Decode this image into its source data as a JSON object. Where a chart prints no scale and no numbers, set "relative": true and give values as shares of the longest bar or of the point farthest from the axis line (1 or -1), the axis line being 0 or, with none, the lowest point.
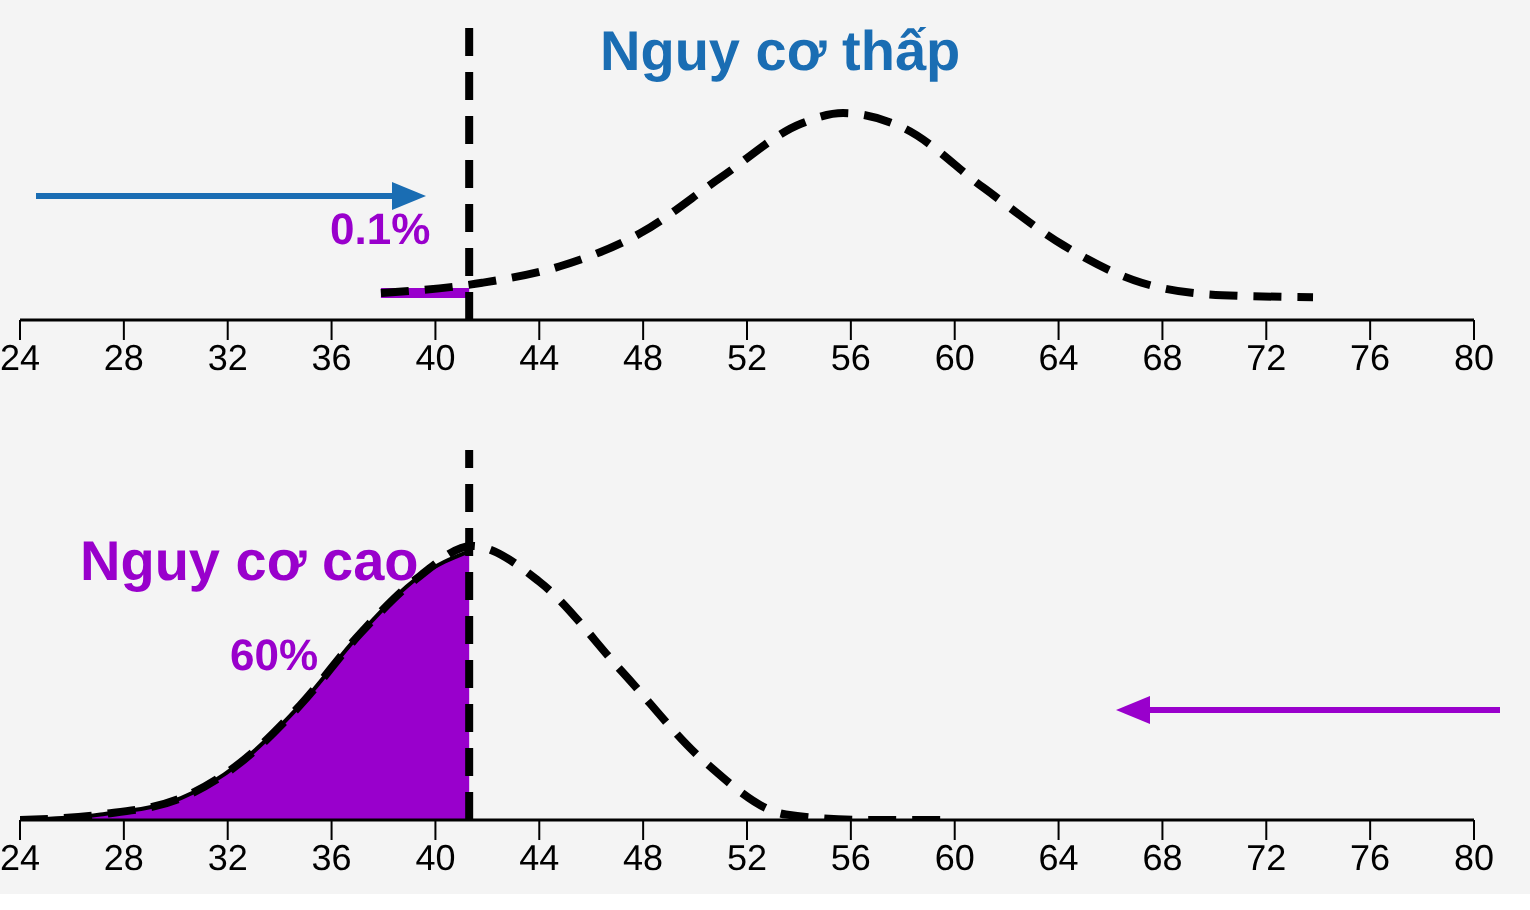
{
  "chart_data": [
    {
      "type": "line",
      "title": "Nguy cơ thấp",
      "relative": true,
      "xlim": [
        24,
        80
      ],
      "xticks": [
        24,
        28,
        32,
        36,
        40,
        44,
        48,
        52,
        56,
        60,
        64,
        68,
        72,
        76,
        80
      ],
      "grid": false,
      "legend": false,
      "series": [
        {
          "color": "#9900cc",
          "line_style": "solid",
          "x": [
            37.9,
            41.3
          ],
          "values": [
            0.13,
            0.13
          ]
        },
        {
          "color": "#000000",
          "line_style": "dashed",
          "x": [
            37.9,
            41.8,
            44.8,
            47.9,
            51,
            54.1,
            55.7,
            58,
            61.1,
            64.2,
            67.2,
            70.3,
            73.8
          ],
          "values": [
            0.13,
            0.18,
            0.26,
            0.42,
            0.69,
            0.95,
            1,
            0.93,
            0.64,
            0.36,
            0.18,
            0.12,
            0.11
          ]
        }
      ],
      "ref_lines": [
        {
          "axis": "x",
          "value": 41.3,
          "color": "#000000",
          "line_style": "dashed"
        }
      ],
      "annotations": [
        "0.1%"
      ]
    },
    {
      "type": "line",
      "title": "Nguy cơ cao",
      "relative": true,
      "xlim": [
        24,
        80
      ],
      "xticks": [
        24,
        28,
        32,
        36,
        40,
        44,
        48,
        52,
        56,
        60,
        64,
        68,
        72,
        76,
        80
      ],
      "grid": false,
      "legend": false,
      "series": [
        {
          "type": "area",
          "color": "#9900cc",
          "x": [
            24,
            27.1,
            30.2,
            32.5,
            34.8,
            37.1,
            39.4,
            41.3
          ],
          "values": [
            0,
            0.02,
            0.08,
            0.21,
            0.42,
            0.68,
            0.89,
            0.98
          ]
        },
        {
          "color": "#000000",
          "line_style": "dashed",
          "x": [
            24,
            27.1,
            30.2,
            32.5,
            34.8,
            37.1,
            39.4,
            41.4,
            44,
            47.2,
            50.4,
            53.5,
            56.6,
            60
          ],
          "values": [
            0,
            0.02,
            0.08,
            0.21,
            0.42,
            0.68,
            0.89,
            1,
            0.87,
            0.54,
            0.21,
            0.02,
            0,
            0
          ]
        }
      ],
      "ref_lines": [
        {
          "axis": "x",
          "value": 41.3,
          "color": "#000000",
          "line_style": "dashed"
        }
      ],
      "annotations": [
        "60%"
      ]
    }
  ]
}
